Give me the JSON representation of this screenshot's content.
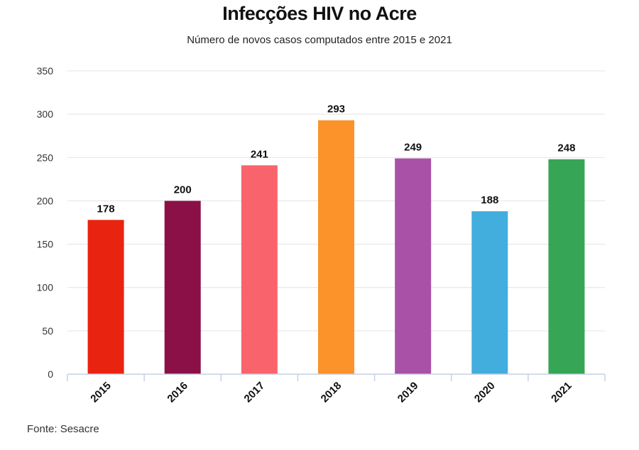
{
  "chart_data": {
    "type": "bar",
    "title": "Infecções HIV no Acre",
    "subtitle": "Número de novos casos computados entre 2015 e 2021",
    "xlabel": "",
    "ylabel": "",
    "categories": [
      "2015",
      "2016",
      "2017",
      "2018",
      "2019",
      "2020",
      "2021"
    ],
    "values": [
      178,
      200,
      241,
      293,
      249,
      188,
      248
    ],
    "data_labels": [
      "178",
      "200",
      "241",
      "293",
      "249",
      "188",
      "248"
    ],
    "colors": [
      "#e8230f",
      "#8b1048",
      "#f9646c",
      "#fb922a",
      "#a851a7",
      "#42aedd",
      "#36a556"
    ],
    "ylim": [
      0,
      350
    ],
    "yticks": [
      0,
      50,
      100,
      150,
      200,
      250,
      300,
      350
    ],
    "ytick_labels": [
      "0",
      "50",
      "100",
      "150",
      "200",
      "250",
      "300",
      "350"
    ],
    "grid": true,
    "legend": "none"
  },
  "source": "Fonte: Sesacre"
}
